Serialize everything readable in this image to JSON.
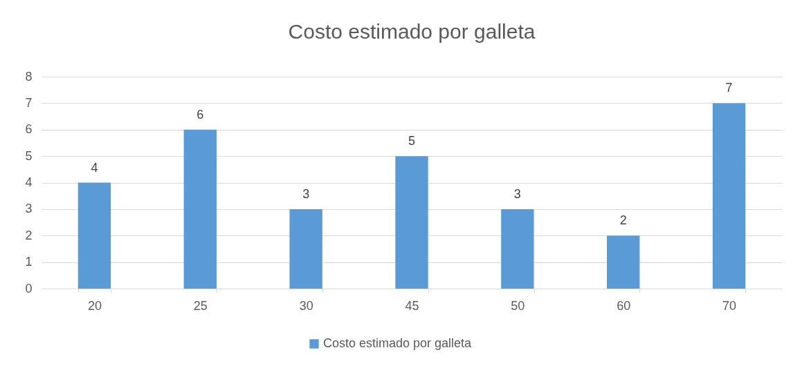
{
  "chart_data": {
    "type": "bar",
    "title": "Costo estimado por galleta",
    "categories": [
      "20",
      "25",
      "30",
      "45",
      "50",
      "60",
      "70"
    ],
    "series": [
      {
        "name": "Costo estimado por galleta",
        "color": "#5b9bd5",
        "values": [
          4,
          6,
          3,
          5,
          3,
          2,
          7
        ]
      }
    ],
    "ylim": [
      0,
      8
    ],
    "yticks": [
      0,
      1,
      2,
      3,
      4,
      5,
      6,
      7,
      8
    ],
    "grid": "y",
    "legend": "bottom",
    "data_labels": true
  }
}
